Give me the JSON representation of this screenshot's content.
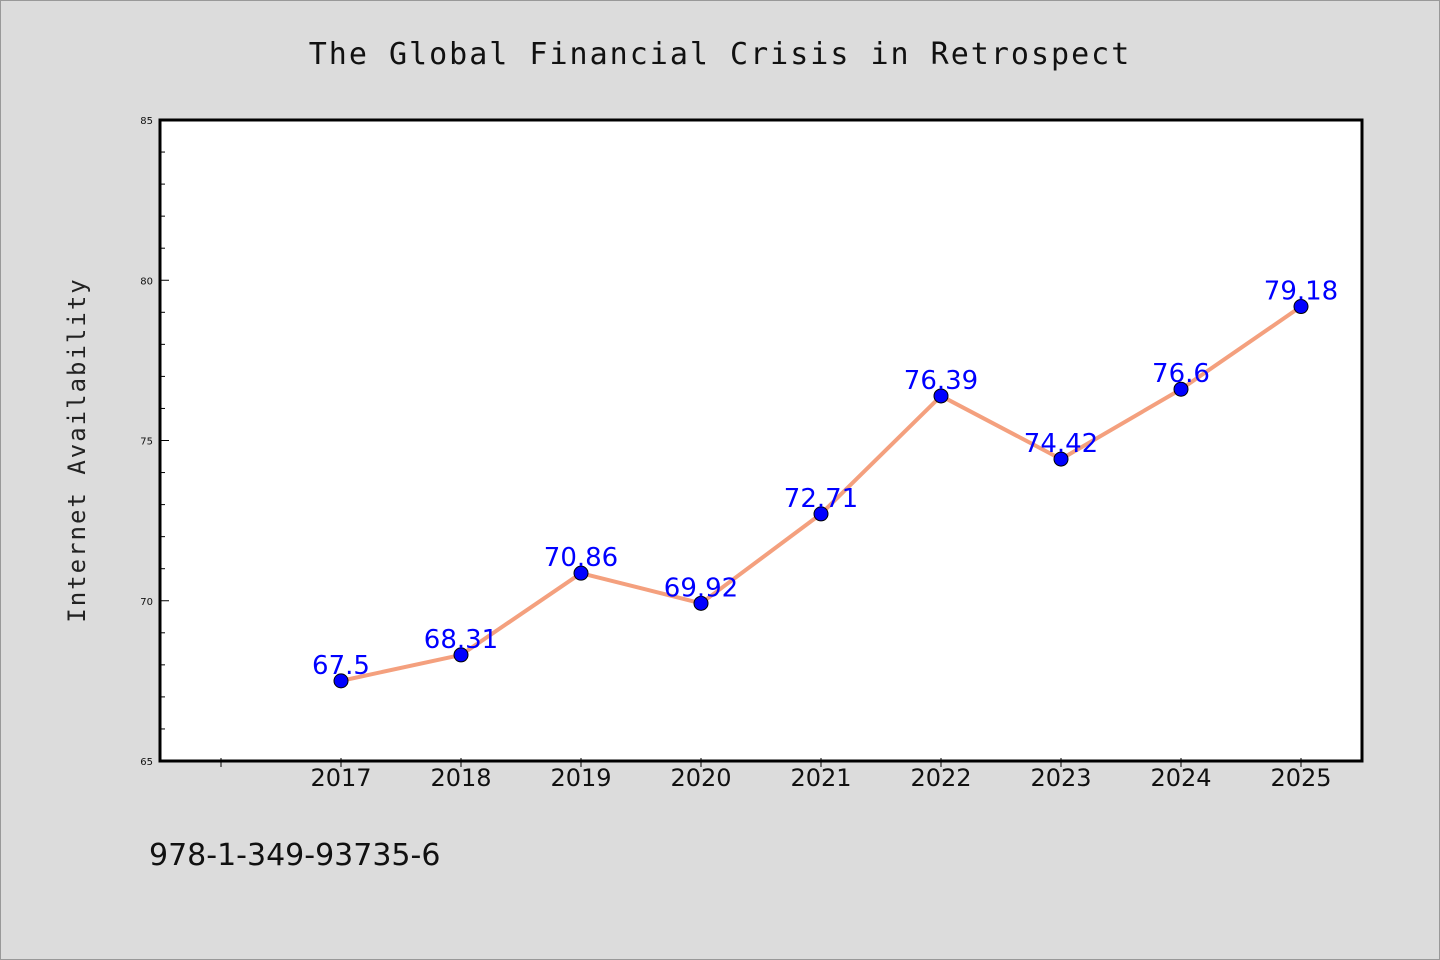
{
  "chart_data": {
    "type": "line",
    "title": "The Global Financial Crisis in Retrospect",
    "xlabel": "",
    "ylabel": "Internet Availability",
    "categories": [
      "2017",
      "2018",
      "2019",
      "2020",
      "2021",
      "2022",
      "2023",
      "2024",
      "2025"
    ],
    "series": [
      {
        "values": [
          67.5,
          68.31,
          70.86,
          69.92,
          72.71,
          76.39,
          74.42,
          76.6,
          79.18
        ],
        "data_labels": [
          "67.5",
          "68.31",
          "70.86",
          "69.92",
          "72.71",
          "76.39",
          "74.42",
          "76.6",
          "79.18"
        ],
        "line_color": "#f4a07e",
        "marker_color": "#0000ff"
      }
    ],
    "ylim": [
      65,
      85
    ],
    "yticks": [
      "65",
      "70",
      "75",
      "80",
      "85"
    ],
    "grid": false,
    "legend": "none"
  },
  "annotation": "978-1-349-93735-6",
  "colors": {
    "background": "#dcdcdc",
    "plot_area": "#ffffff",
    "data_label": "#0000ff"
  }
}
